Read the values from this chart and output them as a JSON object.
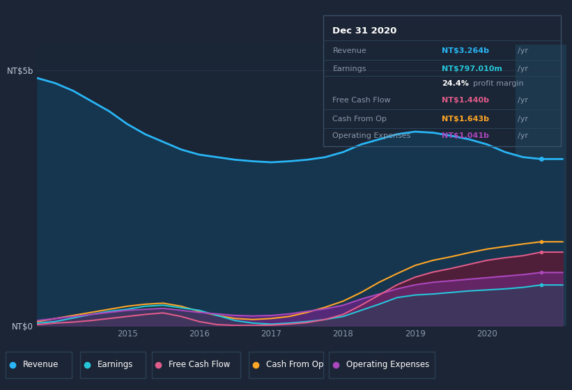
{
  "bg_color": "#1c2535",
  "plot_bg_color": "#1a2535",
  "grid_color": "#263547",
  "text_color": "#8899aa",
  "title_color": "#ffffff",
  "years": [
    2013.75,
    2014.0,
    2014.25,
    2014.5,
    2014.75,
    2015.0,
    2015.25,
    2015.5,
    2015.75,
    2016.0,
    2016.25,
    2016.5,
    2016.75,
    2017.0,
    2017.25,
    2017.5,
    2017.75,
    2018.0,
    2018.25,
    2018.5,
    2018.75,
    2019.0,
    2019.25,
    2019.5,
    2019.75,
    2020.0,
    2020.25,
    2020.5,
    2020.75,
    2021.05
  ],
  "revenue": [
    4.85,
    4.75,
    4.6,
    4.4,
    4.2,
    3.95,
    3.75,
    3.6,
    3.45,
    3.35,
    3.3,
    3.25,
    3.22,
    3.2,
    3.22,
    3.25,
    3.3,
    3.4,
    3.55,
    3.65,
    3.75,
    3.8,
    3.78,
    3.72,
    3.65,
    3.55,
    3.4,
    3.3,
    3.264,
    3.264
  ],
  "earnings": [
    0.05,
    0.08,
    0.15,
    0.22,
    0.28,
    0.32,
    0.38,
    0.4,
    0.35,
    0.3,
    0.2,
    0.1,
    0.05,
    0.03,
    0.05,
    0.08,
    0.12,
    0.18,
    0.3,
    0.42,
    0.55,
    0.6,
    0.62,
    0.65,
    0.68,
    0.7,
    0.72,
    0.75,
    0.797,
    0.797
  ],
  "free_cash_flow": [
    0.02,
    0.05,
    0.07,
    0.1,
    0.14,
    0.18,
    0.22,
    0.25,
    0.18,
    0.08,
    0.02,
    0.005,
    0.005,
    0.01,
    0.03,
    0.06,
    0.12,
    0.22,
    0.4,
    0.6,
    0.8,
    0.95,
    1.05,
    1.12,
    1.2,
    1.28,
    1.33,
    1.37,
    1.44,
    1.44
  ],
  "cash_from_op": [
    0.08,
    0.14,
    0.2,
    0.26,
    0.32,
    0.38,
    0.42,
    0.44,
    0.38,
    0.28,
    0.2,
    0.14,
    0.12,
    0.14,
    0.18,
    0.26,
    0.36,
    0.48,
    0.65,
    0.85,
    1.02,
    1.18,
    1.28,
    1.35,
    1.43,
    1.5,
    1.55,
    1.6,
    1.643,
    1.643
  ],
  "operating_expenses": [
    0.1,
    0.14,
    0.18,
    0.22,
    0.26,
    0.3,
    0.32,
    0.34,
    0.3,
    0.26,
    0.23,
    0.2,
    0.19,
    0.2,
    0.23,
    0.28,
    0.33,
    0.4,
    0.52,
    0.62,
    0.72,
    0.8,
    0.85,
    0.88,
    0.91,
    0.94,
    0.97,
    1.0,
    1.041,
    1.041
  ],
  "revenue_color": "#29b6f6",
  "earnings_color": "#26c6da",
  "free_cash_flow_color": "#e05c8a",
  "cash_from_op_color": "#ffa726",
  "operating_expenses_color": "#ab47bc",
  "revenue_fill": "#16364f",
  "earnings_fill": "#1a5c52",
  "free_cash_flow_fill": "#6b2040",
  "cash_from_op_fill": "#7a4a10",
  "operating_expenses_fill": "#4a2060",
  "highlight_fill": "#1e3a50",
  "ylim_min": 0,
  "ylim_max": 5.5,
  "ytick_labels": [
    "NT$0",
    "NT$5b"
  ],
  "ytick_values": [
    0.0,
    5.0
  ],
  "xlabel_ticks": [
    2015,
    2016,
    2017,
    2018,
    2019,
    2020
  ],
  "xmin": 2013.75,
  "xmax": 2021.1,
  "tooltip_title": "Dec 31 2020",
  "tooltip_bg": "#080f18",
  "tooltip_border": "#2a3f55",
  "legend_labels": [
    "Revenue",
    "Earnings",
    "Free Cash Flow",
    "Cash From Op",
    "Operating Expenses"
  ],
  "legend_colors": [
    "#29b6f6",
    "#26c6da",
    "#e05c8a",
    "#ffa726",
    "#ab47bc"
  ],
  "legend_border": "#2a3f55",
  "highlight_x_start": 2020.4,
  "highlight_x_end": 2021.1,
  "marker_x_val": 2020.75,
  "marker_revenue_y": 3.264,
  "marker_earnings_y": 0.797,
  "marker_fcf_y": 1.44,
  "marker_cfop_y": 1.643,
  "marker_opex_y": 1.041
}
